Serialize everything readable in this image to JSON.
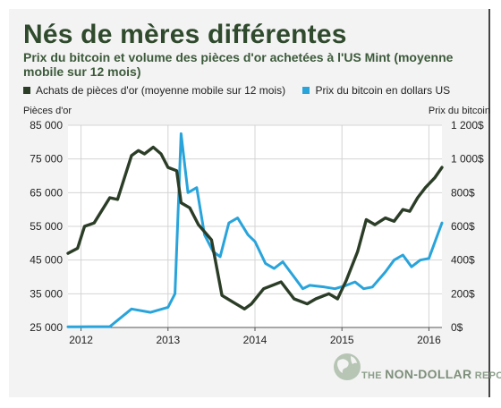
{
  "header": {
    "title": "Nés de mères différentes",
    "subtitle": "Prix du bitcoin et volume des pièces d'or achetées à l'US Mint (moyenne mobile sur 12 mois)"
  },
  "legend": {
    "gold_label": "Achats de pièces d'or (moyenne mobile sur 12 mois)",
    "btc_label": "Prix du bitcoin en dollars US"
  },
  "colors": {
    "gold": "#2b3d27",
    "btc": "#29a4db",
    "plot_bg": "#ffffff",
    "grid": "#d4d4d4"
  },
  "logo": {
    "prefix": "THE",
    "main": "NON-DOLLAR",
    "suffix": "REPORT"
  },
  "chart_data": {
    "type": "line",
    "left_axis_label": "Pièces d'or",
    "right_axis_label": "Prix du bitcoin",
    "x_ticks": [
      "2012",
      "2013",
      "2014",
      "2015",
      "2016"
    ],
    "x_range": [
      2011.85,
      2016.15
    ],
    "y_left_range": [
      25000,
      85000
    ],
    "y_left_ticks": [
      "25 000",
      "35 000",
      "45 000",
      "55 000",
      "65 000",
      "75 000",
      "85 000"
    ],
    "y_right_range": [
      0,
      1200
    ],
    "y_right_ticks": [
      "0$",
      "200$",
      "400$",
      "600$",
      "800$",
      "1 000$",
      "1 200$"
    ],
    "grid": true,
    "legend_position": "top",
    "series": [
      {
        "name": "Achats de pièces d'or (moyenne mobile sur 12 mois)",
        "axis": "left",
        "points": [
          [
            2011.85,
            47000
          ],
          [
            2011.96,
            48500
          ],
          [
            2012.04,
            55000
          ],
          [
            2012.15,
            56000
          ],
          [
            2012.33,
            63500
          ],
          [
            2012.42,
            63000
          ],
          [
            2012.58,
            76000
          ],
          [
            2012.66,
            77500
          ],
          [
            2012.73,
            76500
          ],
          [
            2012.83,
            78500
          ],
          [
            2012.92,
            76500
          ],
          [
            2013.0,
            72500
          ],
          [
            2013.1,
            71500
          ],
          [
            2013.15,
            62000
          ],
          [
            2013.25,
            60500
          ],
          [
            2013.35,
            55500
          ],
          [
            2013.5,
            51000
          ],
          [
            2013.62,
            34500
          ],
          [
            2013.75,
            32500
          ],
          [
            2013.88,
            30500
          ],
          [
            2013.96,
            32000
          ],
          [
            2014.1,
            36500
          ],
          [
            2014.2,
            37500
          ],
          [
            2014.3,
            38500
          ],
          [
            2014.45,
            33500
          ],
          [
            2014.6,
            32000
          ],
          [
            2014.7,
            33500
          ],
          [
            2014.85,
            35000
          ],
          [
            2014.95,
            33500
          ],
          [
            2015.05,
            39000
          ],
          [
            2015.18,
            47500
          ],
          [
            2015.28,
            57000
          ],
          [
            2015.38,
            55500
          ],
          [
            2015.5,
            57500
          ],
          [
            2015.6,
            56500
          ],
          [
            2015.7,
            60000
          ],
          [
            2015.78,
            59500
          ],
          [
            2015.87,
            63500
          ],
          [
            2015.96,
            66500
          ],
          [
            2016.07,
            69500
          ],
          [
            2016.15,
            72500
          ]
        ]
      },
      {
        "name": "Prix du bitcoin en dollars US",
        "axis": "right",
        "points": [
          [
            2011.85,
            4
          ],
          [
            2011.96,
            4
          ],
          [
            2012.1,
            5
          ],
          [
            2012.33,
            5
          ],
          [
            2012.58,
            110
          ],
          [
            2012.8,
            90
          ],
          [
            2013.0,
            120
          ],
          [
            2013.08,
            200
          ],
          [
            2013.15,
            1150
          ],
          [
            2013.23,
            800
          ],
          [
            2013.33,
            830
          ],
          [
            2013.42,
            550
          ],
          [
            2013.52,
            450
          ],
          [
            2013.6,
            420
          ],
          [
            2013.7,
            620
          ],
          [
            2013.8,
            650
          ],
          [
            2013.92,
            550
          ],
          [
            2014.0,
            510
          ],
          [
            2014.12,
            380
          ],
          [
            2014.22,
            350
          ],
          [
            2014.32,
            390
          ],
          [
            2014.45,
            300
          ],
          [
            2014.55,
            230
          ],
          [
            2014.63,
            250
          ],
          [
            2014.8,
            240
          ],
          [
            2014.92,
            230
          ],
          [
            2015.05,
            250
          ],
          [
            2015.15,
            270
          ],
          [
            2015.25,
            230
          ],
          [
            2015.35,
            240
          ],
          [
            2015.5,
            330
          ],
          [
            2015.6,
            400
          ],
          [
            2015.7,
            430
          ],
          [
            2015.8,
            360
          ],
          [
            2015.9,
            400
          ],
          [
            2016.0,
            410
          ],
          [
            2016.1,
            550
          ],
          [
            2016.15,
            620
          ]
        ]
      }
    ]
  }
}
